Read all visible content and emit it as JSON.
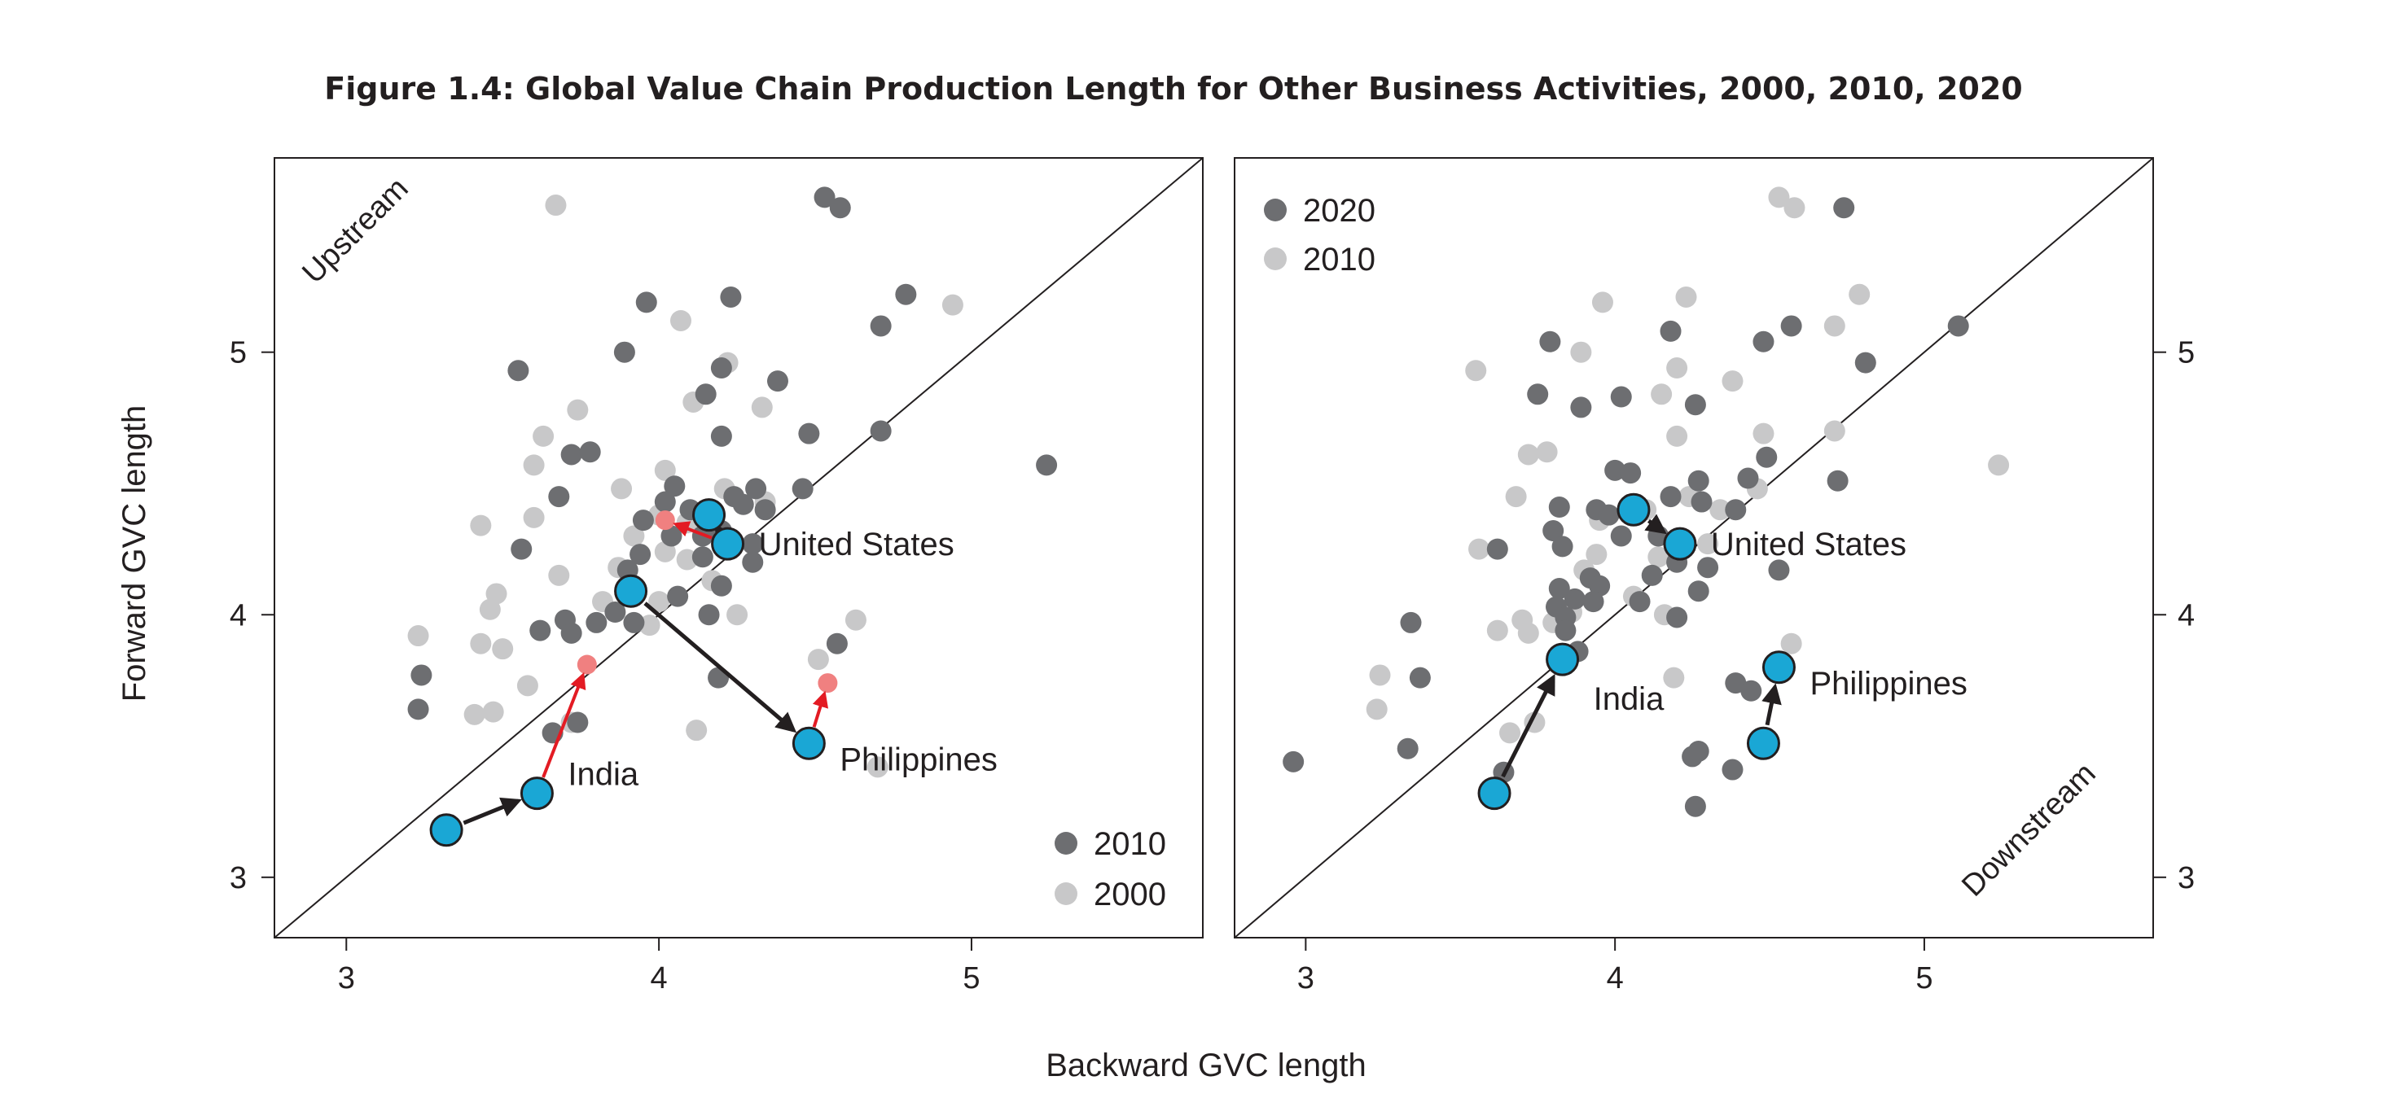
{
  "title": "Figure 1.4: Global Value Chain Production Length for Other Business Activities, 2000, 2010, 2020",
  "colors": {
    "dark_series": "#6d6e71",
    "light_series": "#c8c8c9",
    "highlight": "#1aa7d5",
    "arrow_dark": "#231f20",
    "arrow_red": "#e31b23",
    "ghost_red": "#f08080",
    "frame": "#231f20"
  },
  "chart_data": [
    {
      "type": "scatter",
      "panel": "left",
      "xlabel": "Backward GVC length",
      "ylabel": "Forward GVC length",
      "xlim": [
        2.77,
        5.74
      ],
      "ylim": [
        2.77,
        5.74
      ],
      "xticks": [
        "3",
        "4",
        "5"
      ],
      "yticks": [
        "3",
        "4",
        "5"
      ],
      "diagonal": true,
      "region_label": "Upstream",
      "legend_position": "bottom-right",
      "legend": [
        "2010",
        "2000"
      ],
      "series": [
        {
          "name": "2010",
          "color": "#6d6e71",
          "points": [
            [
              4.53,
              5.59
            ],
            [
              4.58,
              5.55
            ],
            [
              4.79,
              5.22
            ],
            [
              4.23,
              5.21
            ],
            [
              3.96,
              5.19
            ],
            [
              4.71,
              5.1
            ],
            [
              3.89,
              5.0
            ],
            [
              3.55,
              4.93
            ],
            [
              4.15,
              4.84
            ],
            [
              4.2,
              4.94
            ],
            [
              4.38,
              4.89
            ],
            [
              4.71,
              4.7
            ],
            [
              3.72,
              4.61
            ],
            [
              3.78,
              4.62
            ],
            [
              4.2,
              4.68
            ],
            [
              4.48,
              4.69
            ],
            [
              5.24,
              4.57
            ],
            [
              4.05,
              4.49
            ],
            [
              4.24,
              4.45
            ],
            [
              4.31,
              4.48
            ],
            [
              4.46,
              4.48
            ],
            [
              3.68,
              4.45
            ],
            [
              4.02,
              4.43
            ],
            [
              4.1,
              4.4
            ],
            [
              4.27,
              4.42
            ],
            [
              4.34,
              4.4
            ],
            [
              4.04,
              4.3
            ],
            [
              3.95,
              4.36
            ],
            [
              4.14,
              4.3
            ],
            [
              4.2,
              4.32
            ],
            [
              4.3,
              4.27
            ],
            [
              3.56,
              4.25
            ],
            [
              3.9,
              4.17
            ],
            [
              4.14,
              4.22
            ],
            [
              4.3,
              4.2
            ],
            [
              3.94,
              4.23
            ],
            [
              4.2,
              4.11
            ],
            [
              4.06,
              4.07
            ],
            [
              3.86,
              4.01
            ],
            [
              3.92,
              3.97
            ],
            [
              3.8,
              3.97
            ],
            [
              3.7,
              3.98
            ],
            [
              4.16,
              4.0
            ],
            [
              3.62,
              3.94
            ],
            [
              3.72,
              3.93
            ],
            [
              4.57,
              3.89
            ],
            [
              4.19,
              3.76
            ],
            [
              3.24,
              3.77
            ],
            [
              3.23,
              3.64
            ],
            [
              3.66,
              3.55
            ],
            [
              3.74,
              3.59
            ]
          ]
        },
        {
          "name": "2000",
          "color": "#c8c8c9",
          "points": [
            [
              3.67,
              5.56
            ],
            [
              4.94,
              5.18
            ],
            [
              4.07,
              5.12
            ],
            [
              4.22,
              4.96
            ],
            [
              4.11,
              4.81
            ],
            [
              4.33,
              4.79
            ],
            [
              3.74,
              4.78
            ],
            [
              3.63,
              4.68
            ],
            [
              4.02,
              4.55
            ],
            [
              3.88,
              4.48
            ],
            [
              3.6,
              4.57
            ],
            [
              4.21,
              4.48
            ],
            [
              4.34,
              4.43
            ],
            [
              4.0,
              4.38
            ],
            [
              3.6,
              4.37
            ],
            [
              3.43,
              4.34
            ],
            [
              4.09,
              4.35
            ],
            [
              3.92,
              4.3
            ],
            [
              4.02,
              4.24
            ],
            [
              4.09,
              4.21
            ],
            [
              3.87,
              4.18
            ],
            [
              3.68,
              4.15
            ],
            [
              4.17,
              4.13
            ],
            [
              3.48,
              4.08
            ],
            [
              3.82,
              4.05
            ],
            [
              4.0,
              4.05
            ],
            [
              4.25,
              4.0
            ],
            [
              3.46,
              4.02
            ],
            [
              3.97,
              3.96
            ],
            [
              3.23,
              3.92
            ],
            [
              3.43,
              3.89
            ],
            [
              3.5,
              3.87
            ],
            [
              4.63,
              3.98
            ],
            [
              4.51,
              3.83
            ],
            [
              3.58,
              3.73
            ],
            [
              3.41,
              3.62
            ],
            [
              3.47,
              3.63
            ],
            [
              3.72,
              3.59
            ],
            [
              4.12,
              3.56
            ],
            [
              4.7,
              3.42
            ]
          ]
        }
      ],
      "highlights": [
        {
          "label": "United States",
          "from": [
            4.16,
            4.38
          ],
          "to": [
            4.22,
            4.27
          ],
          "ghost": [
            4.02,
            4.36
          ],
          "label_dx": 1,
          "label_dy": 0
        },
        {
          "label": "India",
          "from": [
            3.32,
            3.18
          ],
          "to": [
            3.61,
            3.32
          ],
          "ghost": [
            3.77,
            3.81
          ],
          "label_dx": 1,
          "label_dy": -0.5
        },
        {
          "label": "Philippines",
          "from": [
            3.91,
            4.09
          ],
          "to": [
            4.48,
            3.51
          ],
          "ghost": [
            4.54,
            3.74
          ],
          "label_dx": 1,
          "label_dy": 0.4
        }
      ]
    },
    {
      "type": "scatter",
      "panel": "right",
      "xlabel": "Backward GVC length",
      "ylabel": "Forward GVC length",
      "xlim": [
        2.77,
        5.74
      ],
      "ylim": [
        2.77,
        5.74
      ],
      "xticks": [
        "3",
        "4",
        "5"
      ],
      "yticks": [
        "3",
        "4",
        "5"
      ],
      "diagonal": true,
      "region_label": "Downstream",
      "legend_position": "top-left",
      "legend": [
        "2020",
        "2010"
      ],
      "series": [
        {
          "name": "2020",
          "color": "#6d6e71",
          "points": [
            [
              4.74,
              5.55
            ],
            [
              4.18,
              5.08
            ],
            [
              4.57,
              5.1
            ],
            [
              5.11,
              5.1
            ],
            [
              3.79,
              5.04
            ],
            [
              4.48,
              5.04
            ],
            [
              4.81,
              4.96
            ],
            [
              3.75,
              4.84
            ],
            [
              3.89,
              4.79
            ],
            [
              4.02,
              4.83
            ],
            [
              4.26,
              4.8
            ],
            [
              4.49,
              4.6
            ],
            [
              4.72,
              4.51
            ],
            [
              4.43,
              4.52
            ],
            [
              4.27,
              4.51
            ],
            [
              4.0,
              4.55
            ],
            [
              4.05,
              4.54
            ],
            [
              4.18,
              4.45
            ],
            [
              4.28,
              4.43
            ],
            [
              4.39,
              4.4
            ],
            [
              3.82,
              4.41
            ],
            [
              3.94,
              4.4
            ],
            [
              3.98,
              4.38
            ],
            [
              4.02,
              4.3
            ],
            [
              4.14,
              4.3
            ],
            [
              3.8,
              4.32
            ],
            [
              3.62,
              4.25
            ],
            [
              3.83,
              4.26
            ],
            [
              4.3,
              4.18
            ],
            [
              4.53,
              4.17
            ],
            [
              3.92,
              4.14
            ],
            [
              3.95,
              4.11
            ],
            [
              4.12,
              4.15
            ],
            [
              4.2,
              4.2
            ],
            [
              3.82,
              4.1
            ],
            [
              3.87,
              4.06
            ],
            [
              3.93,
              4.05
            ],
            [
              4.08,
              4.05
            ],
            [
              4.27,
              4.09
            ],
            [
              3.81,
              4.03
            ],
            [
              3.84,
              3.99
            ],
            [
              4.2,
              3.99
            ],
            [
              3.34,
              3.97
            ],
            [
              3.84,
              3.94
            ],
            [
              3.88,
              3.86
            ],
            [
              4.39,
              3.74
            ],
            [
              4.44,
              3.71
            ],
            [
              3.37,
              3.76
            ],
            [
              3.33,
              3.49
            ],
            [
              4.25,
              3.46
            ],
            [
              4.27,
              3.48
            ],
            [
              4.38,
              3.41
            ],
            [
              4.26,
              3.27
            ],
            [
              2.96,
              3.44
            ],
            [
              3.64,
              3.4
            ]
          ]
        },
        {
          "name": "2010",
          "color": "#c8c8c9",
          "points": [
            [
              4.53,
              5.59
            ],
            [
              4.58,
              5.55
            ],
            [
              4.79,
              5.22
            ],
            [
              4.23,
              5.21
            ],
            [
              3.96,
              5.19
            ],
            [
              4.71,
              5.1
            ],
            [
              3.89,
              5.0
            ],
            [
              3.55,
              4.93
            ],
            [
              4.15,
              4.84
            ],
            [
              4.2,
              4.94
            ],
            [
              4.38,
              4.89
            ],
            [
              4.71,
              4.7
            ],
            [
              3.72,
              4.61
            ],
            [
              3.78,
              4.62
            ],
            [
              4.2,
              4.68
            ],
            [
              4.48,
              4.69
            ],
            [
              5.24,
              4.57
            ],
            [
              3.68,
              4.45
            ],
            [
              4.46,
              4.48
            ],
            [
              4.24,
              4.45
            ],
            [
              4.1,
              4.4
            ],
            [
              4.34,
              4.4
            ],
            [
              3.95,
              4.36
            ],
            [
              4.3,
              4.27
            ],
            [
              3.56,
              4.25
            ],
            [
              3.9,
              4.17
            ],
            [
              4.14,
              4.22
            ],
            [
              3.94,
              4.23
            ],
            [
              4.06,
              4.07
            ],
            [
              4.16,
              4.0
            ],
            [
              3.86,
              4.01
            ],
            [
              3.8,
              3.97
            ],
            [
              3.7,
              3.98
            ],
            [
              3.62,
              3.94
            ],
            [
              3.72,
              3.93
            ],
            [
              4.57,
              3.89
            ],
            [
              4.19,
              3.76
            ],
            [
              3.24,
              3.77
            ],
            [
              3.23,
              3.64
            ],
            [
              3.66,
              3.55
            ],
            [
              3.74,
              3.59
            ]
          ]
        }
      ],
      "highlights": [
        {
          "label": "United States",
          "from": [
            4.06,
            4.4
          ],
          "to": [
            4.21,
            4.27
          ],
          "label_dx": 1,
          "label_dy": 0
        },
        {
          "label": "India",
          "from": [
            3.61,
            3.32
          ],
          "to": [
            3.83,
            3.83
          ],
          "label_dx": 1,
          "label_dy": 1
        },
        {
          "label": "Philippines",
          "from": [
            4.48,
            3.51
          ],
          "to": [
            4.53,
            3.8
          ],
          "label_dx": 1,
          "label_dy": 0.4
        }
      ]
    }
  ]
}
